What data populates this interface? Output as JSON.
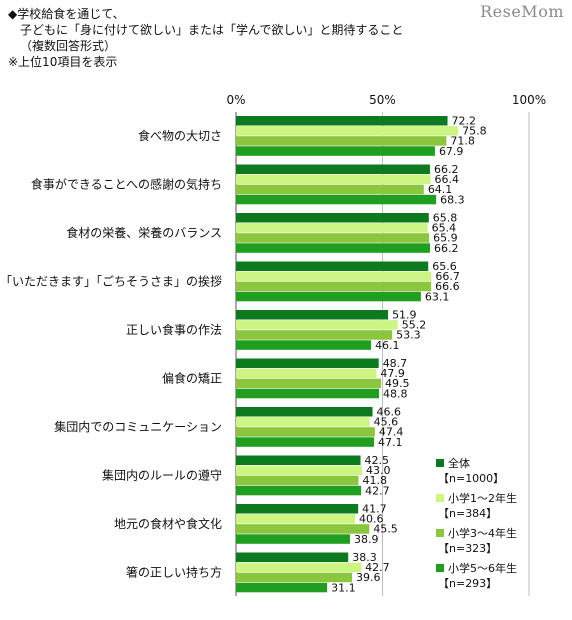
{
  "header": {
    "line1": "◆学校給食を通じて、",
    "line2": "子どもに「身に付けて欲しい」または「学んで欲しい」と期待すること",
    "line3": "（複数回答形式）",
    "line4": "※上位10項目を表示"
  },
  "watermark": "ReseMom",
  "colors": {
    "series": [
      "#0e7a1f",
      "#cdf583",
      "#8cc63f",
      "#1f9e1f"
    ],
    "grid": "#bdbdbd",
    "axis": "#555555"
  },
  "chart_data": {
    "type": "bar",
    "orientation": "horizontal",
    "xlim": [
      0,
      100
    ],
    "x_tick_labels": [
      "0%",
      "50%",
      "100%"
    ],
    "grid": true,
    "legend_position": "right",
    "categories": [
      "食べ物の大切さ",
      "食事ができることへの感謝の気持ち",
      "食材の栄養、栄養のバランス",
      "「いただきます」「ごちそうさま」の挨拶",
      "正しい食事の作法",
      "偏食の矯正",
      "集団内でのコミュニケーション",
      "集団内のルールの遵守",
      "地元の食材や食文化",
      "箸の正しい持ち方"
    ],
    "series": [
      {
        "name": "全体",
        "n": "【n=1000】",
        "values": [
          72.2,
          66.2,
          65.8,
          65.6,
          51.9,
          48.7,
          46.6,
          42.5,
          41.7,
          38.3
        ]
      },
      {
        "name": "小学1～2年生",
        "n": "【n=384】",
        "values": [
          75.8,
          66.4,
          65.4,
          66.7,
          55.2,
          47.9,
          45.6,
          43.0,
          40.6,
          42.7
        ]
      },
      {
        "name": "小学3～4年生",
        "n": "【n=323】",
        "values": [
          71.8,
          64.1,
          65.9,
          66.6,
          53.3,
          49.5,
          47.4,
          41.8,
          45.5,
          39.6
        ]
      },
      {
        "name": "小学5～6年生",
        "n": "【n=293】",
        "values": [
          67.9,
          68.3,
          66.2,
          63.1,
          46.1,
          48.8,
          47.1,
          42.7,
          38.9,
          31.1
        ]
      }
    ]
  }
}
